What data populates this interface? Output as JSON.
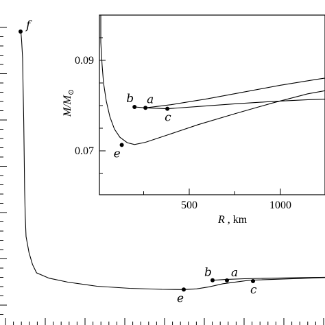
{
  "chart_data": [
    {
      "type": "line",
      "name": "main",
      "xlabel": "",
      "ylabel": "",
      "series": [
        {
          "points": [
            [
              2360,
              0.5
            ],
            [
              2370,
              0.495
            ],
            [
              2380,
              0.485
            ],
            [
              2400,
              0.455
            ],
            [
              2430,
              0.41
            ],
            [
              2480,
              0.35
            ],
            [
              2550,
              0.29
            ],
            [
              2650,
              0.235
            ],
            [
              2800,
              0.19
            ],
            [
              3000,
              0.155
            ],
            [
              3250,
              0.128
            ],
            [
              3550,
              0.108
            ],
            [
              3900,
              0.094
            ],
            [
              4300,
              0.085
            ],
            [
              4800,
              0.079
            ],
            [
              5400,
              0.075
            ],
            [
              6000,
              0.073
            ],
            [
              6600,
              0.072
            ],
            [
              7000,
              0.0718
            ],
            [
              7400,
              0.0725
            ],
            [
              7800,
              0.0745
            ],
            [
              8300,
              0.0775
            ],
            [
              8900,
              0.0815
            ],
            [
              9600,
              0.086
            ]
          ]
        },
        {
          "points": [
            [
              7900,
              0.0815
            ],
            [
              8100,
              0.082
            ],
            [
              8400,
              0.0828
            ],
            [
              8800,
              0.084
            ],
            [
              9300,
              0.0855
            ],
            [
              9600,
              0.0865
            ]
          ]
        }
      ],
      "xlim": [
        2000,
        9600
      ],
      "ylim": [
        0.06,
        0.55
      ],
      "points_labeled": [
        {
          "label": "f",
          "x": 2360,
          "y": 0.5
        },
        {
          "label": "e",
          "x": 7000,
          "y": 0.0718
        },
        {
          "label": "b",
          "x": 7900,
          "y": 0.0815
        },
        {
          "label": "a",
          "x": 8450,
          "y": 0.0812
        },
        {
          "label": "c",
          "x": 8970,
          "y": 0.08
        }
      ]
    },
    {
      "type": "line",
      "name": "inset",
      "xlabel": "R, km",
      "ylabel": "M/M",
      "ylabel_subscript": "⊙",
      "xlim": [
        0,
        1300
      ],
      "ylim": [
        0.06,
        0.1
      ],
      "xticks": [
        500,
        1000
      ],
      "xtick_labels": [
        "500",
        "1000"
      ],
      "yticks": [
        0.07,
        0.09
      ],
      "ytick_labels": [
        "0.07",
        "0.09"
      ],
      "series": [
        {
          "points": [
            [
              5,
              0.1
            ],
            [
              10,
              0.098
            ],
            [
              15,
              0.094
            ],
            [
              22,
              0.089
            ],
            [
              30,
              0.085
            ],
            [
              45,
              0.081
            ],
            [
              65,
              0.0775
            ],
            [
              90,
              0.0748
            ],
            [
              120,
              0.073
            ],
            [
              160,
              0.0718
            ],
            [
              200,
              0.0714
            ],
            [
              260,
              0.0719
            ],
            [
              380,
              0.0735
            ],
            [
              550,
              0.0758
            ],
            [
              750,
              0.0782
            ],
            [
              950,
              0.0805
            ],
            [
              1150,
              0.0826
            ],
            [
              1300,
              0.0837
            ]
          ]
        },
        {
          "points": [
            [
              200,
              0.0797
            ],
            [
              260,
              0.0795
            ],
            [
              380,
              0.0793
            ],
            [
              550,
              0.0798
            ],
            [
              750,
              0.0804
            ],
            [
              950,
              0.0809
            ],
            [
              1150,
              0.0813
            ],
            [
              1300,
              0.0815
            ]
          ]
        },
        {
          "points": [
            [
              260,
              0.0795
            ],
            [
              400,
              0.0802
            ],
            [
              600,
              0.0815
            ],
            [
              800,
              0.083
            ],
            [
              1000,
              0.0845
            ],
            [
              1200,
              0.0858
            ],
            [
              1300,
              0.0864
            ]
          ]
        }
      ],
      "points_labeled": [
        {
          "label": "b",
          "x": 200,
          "y": 0.0797
        },
        {
          "label": "a",
          "x": 260,
          "y": 0.0795
        },
        {
          "label": "c",
          "x": 380,
          "y": 0.0793
        },
        {
          "label": "e",
          "x": 130,
          "y": 0.0713
        },
        {
          "label": "",
          "x": 1265,
          "y": 0.0815
        }
      ]
    }
  ]
}
